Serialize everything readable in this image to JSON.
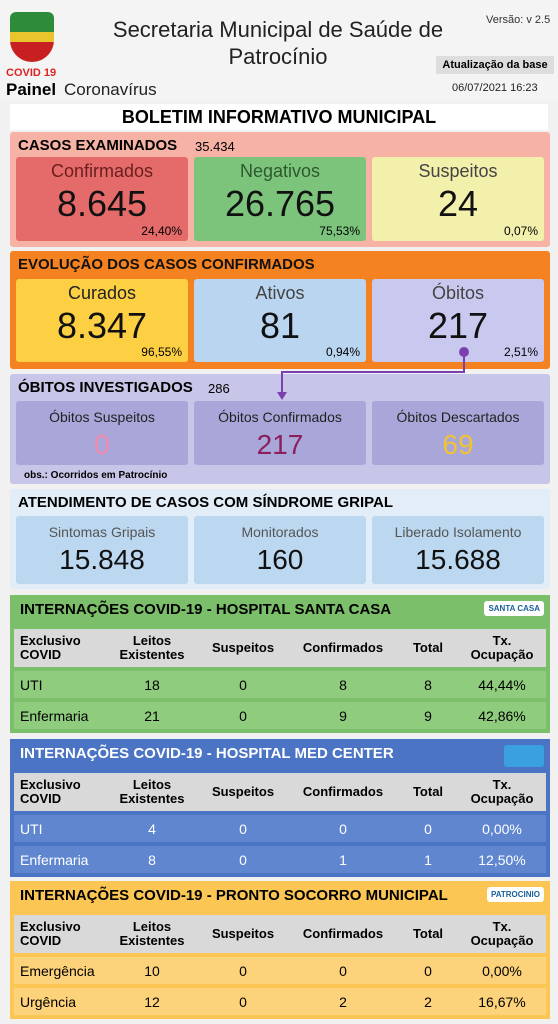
{
  "header": {
    "logo_label": "COVID 19",
    "app_name": "Painel",
    "app_subtitle": "Coronavírus",
    "title": "Secretaria Municipal de Saúde de Patrocínio",
    "version": "Versão: v 2.5",
    "update_label": "Atualização da base",
    "update_date": "06/07/2021 16:23"
  },
  "banner": "BOLETIM INFORMATIVO MUNICIPAL",
  "panels": [
    {
      "title": "CASOS EXAMINADOS",
      "total": "35.434",
      "cards": [
        {
          "label": "Confirmados",
          "value": "8.645",
          "percent": "24,40%"
        },
        {
          "label": "Negativos",
          "value": "26.765",
          "percent": "75,53%"
        },
        {
          "label": "Suspeitos",
          "value": "24",
          "percent": "0,07%"
        }
      ]
    },
    {
      "title": "EVOLUÇÃO DOS CASOS CONFIRMADOS",
      "cards": [
        {
          "label": "Curados",
          "value": "8.347",
          "percent": "96,55%"
        },
        {
          "label": "Ativos",
          "value": "81",
          "percent": "0,94%"
        },
        {
          "label": "Óbitos",
          "value": "217",
          "percent": "2,51%"
        }
      ]
    },
    {
      "title": "ÓBITOS INVESTIGADOS",
      "total": "286",
      "cards": [
        {
          "label": "Óbitos Suspeitos",
          "value": "0"
        },
        {
          "label": "Óbitos Confirmados",
          "value": "217"
        },
        {
          "label": "Óbitos Descartados",
          "value": "69"
        }
      ],
      "note": "obs.: Ocorridos em Patrocínio"
    },
    {
      "title": "ATENDIMENTO DE CASOS COM SÍNDROME GRIPAL",
      "cards": [
        {
          "label": "Sintomas Gripais",
          "value": "15.848"
        },
        {
          "label": "Monitorados",
          "value": "160"
        },
        {
          "label": "Liberado Isolamento",
          "value": "15.688"
        }
      ]
    }
  ],
  "tables": [
    {
      "title": "INTERNAÇÕES COVID-19 - HOSPITAL SANTA CASA",
      "logo": "SANTA CASA",
      "columns": [
        "Exclusivo COVID",
        "Leitos Existentes",
        "Suspeitos",
        "Confirmados",
        "Total",
        "Tx. Ocupação"
      ],
      "rows": [
        [
          "UTI",
          "18",
          "0",
          "8",
          "8",
          "44,44%"
        ],
        [
          "Enfermaria",
          "21",
          "0",
          "9",
          "9",
          "42,86%"
        ]
      ]
    },
    {
      "title": "INTERNAÇÕES COVID-19 - HOSPITAL MED CENTER",
      "columns": [
        "Exclusivo COVID",
        "Leitos Existentes",
        "Suspeitos",
        "Confirmados",
        "Total",
        "Tx. Ocupação"
      ],
      "rows": [
        [
          "UTI",
          "4",
          "0",
          "0",
          "0",
          "0,00%"
        ],
        [
          "Enfermaria",
          "8",
          "0",
          "1",
          "1",
          "12,50%"
        ]
      ]
    },
    {
      "title": "INTERNAÇÕES COVID-19 - PRONTO SOCORRO MUNICIPAL",
      "logo": "PATROCINIO",
      "columns": [
        "Exclusivo COVID",
        "Leitos Existentes",
        "Suspeitos",
        "Confirmados",
        "Total",
        "Tx. Ocupação"
      ],
      "rows": [
        [
          "Emergência",
          "10",
          "0",
          "0",
          "0",
          "0,00%"
        ],
        [
          "Urgência",
          "12",
          "0",
          "2",
          "2",
          "16,67%"
        ]
      ]
    }
  ]
}
